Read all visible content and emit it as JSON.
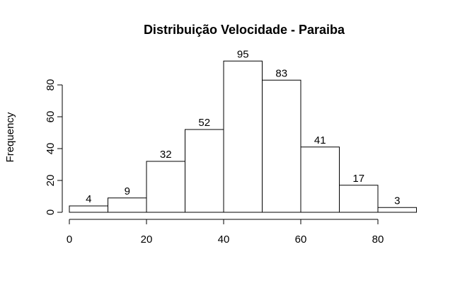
{
  "chart_data": {
    "type": "bar",
    "title": "Distribuição Velocidade - Paraiba",
    "xlabel": "",
    "ylabel": "Frequency",
    "bins": [
      {
        "x0": 0,
        "x1": 10,
        "value": 4,
        "label": "4"
      },
      {
        "x0": 10,
        "x1": 20,
        "value": 9,
        "label": "9"
      },
      {
        "x0": 20,
        "x1": 30,
        "value": 32,
        "label": "32"
      },
      {
        "x0": 30,
        "x1": 40,
        "value": 52,
        "label": "52"
      },
      {
        "x0": 40,
        "x1": 50,
        "value": 95,
        "label": "95"
      },
      {
        "x0": 50,
        "x1": 60,
        "value": 83,
        "label": "83"
      },
      {
        "x0": 60,
        "x1": 70,
        "value": 41,
        "label": "41"
      },
      {
        "x0": 70,
        "x1": 80,
        "value": 17,
        "label": "17"
      },
      {
        "x0": 80,
        "x1": 90,
        "value": 3,
        "label": "3"
      }
    ],
    "xticks": [
      0,
      20,
      40,
      60,
      80
    ],
    "yticks": [
      0,
      20,
      40,
      60,
      80
    ],
    "xlim": [
      0,
      90
    ],
    "ylim": [
      0,
      95
    ],
    "grid": false,
    "bar_fill": "#ffffff",
    "bar_stroke": "#000000"
  }
}
